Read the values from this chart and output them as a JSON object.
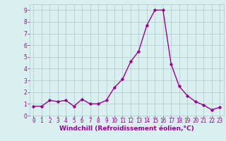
{
  "x": [
    0,
    1,
    2,
    3,
    4,
    5,
    6,
    7,
    8,
    9,
    10,
    11,
    12,
    13,
    14,
    15,
    16,
    17,
    18,
    19,
    20,
    21,
    22,
    23
  ],
  "y": [
    0.8,
    0.8,
    1.3,
    1.2,
    1.3,
    0.8,
    1.4,
    1.0,
    1.0,
    1.3,
    2.4,
    3.1,
    4.6,
    5.5,
    7.7,
    9.0,
    9.0,
    4.4,
    2.5,
    1.7,
    1.2,
    0.9,
    0.5,
    0.7
  ],
  "line_color": "#990099",
  "marker": "D",
  "marker_size": 1.8,
  "bg_color": "#d8f0f0",
  "grid_color": "#b0c8c8",
  "xlabel": "Windchill (Refroidissement éolien,°C)",
  "xlim": [
    -0.5,
    23.5
  ],
  "ylim": [
    0,
    9.5
  ],
  "yticks": [
    0,
    1,
    2,
    3,
    4,
    5,
    6,
    7,
    8,
    9
  ],
  "xticks": [
    0,
    1,
    2,
    3,
    4,
    5,
    6,
    7,
    8,
    9,
    10,
    11,
    12,
    13,
    14,
    15,
    16,
    17,
    18,
    19,
    20,
    21,
    22,
    23
  ],
  "tick_label_color": "#990099",
  "xlabel_color": "#990099",
  "xlabel_fontsize": 6.5,
  "tick_fontsize": 5.5,
  "linewidth": 1.0
}
